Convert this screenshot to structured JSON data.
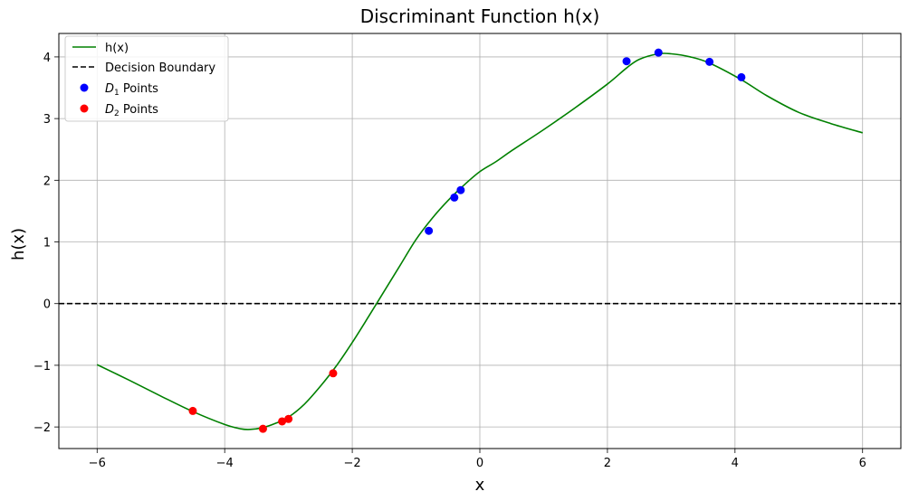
{
  "chart_data": {
    "type": "line",
    "title": "Discriminant Function h(x)",
    "xlabel": "x",
    "ylabel": "h(x)",
    "xlim": [
      -6.6,
      6.6
    ],
    "ylim": [
      -2.35,
      4.38
    ],
    "xticks": [
      -6,
      -4,
      -2,
      0,
      2,
      4,
      6
    ],
    "yticks": [
      -2,
      -1,
      0,
      1,
      2,
      3,
      4
    ],
    "xtick_labels": [
      "−6",
      "−4",
      "−2",
      "0",
      "2",
      "4",
      "6"
    ],
    "ytick_labels": [
      "−2",
      "−1",
      "0",
      "1",
      "2",
      "3",
      "4"
    ],
    "grid": true,
    "legend_position": "top-left",
    "curve": {
      "name": "h(x)",
      "color": "#008000",
      "x": [
        -6.0,
        -5.5,
        -5.0,
        -4.5,
        -4.0,
        -3.75,
        -3.6,
        -3.4,
        -3.2,
        -3.0,
        -2.75,
        -2.5,
        -2.25,
        -2.0,
        -1.75,
        -1.5,
        -1.25,
        -1.0,
        -0.75,
        -0.5,
        -0.25,
        0.0,
        0.25,
        0.5,
        1.0,
        1.5,
        2.0,
        2.3,
        2.5,
        2.8,
        3.0,
        3.3,
        3.6,
        4.1,
        4.5,
        5.0,
        5.5,
        6.0
      ],
      "y": [
        -0.99,
        -1.24,
        -1.5,
        -1.75,
        -1.96,
        -2.03,
        -2.04,
        -2.01,
        -1.94,
        -1.84,
        -1.63,
        -1.34,
        -1.01,
        -0.63,
        -0.22,
        0.2,
        0.62,
        1.04,
        1.38,
        1.67,
        1.92,
        2.14,
        2.3,
        2.48,
        2.82,
        3.18,
        3.56,
        3.82,
        3.96,
        4.05,
        4.05,
        4.0,
        3.9,
        3.63,
        3.37,
        3.1,
        2.92,
        2.77
      ]
    },
    "decision_boundary": {
      "name": "Decision Boundary",
      "y": 0,
      "color": "#000000"
    },
    "series": [
      {
        "name_base": "D",
        "name_sub": "1",
        "name_suffix": " Points",
        "color": "#0000ff",
        "x": [
          -0.8,
          -0.4,
          -0.3,
          2.3,
          2.8,
          3.6,
          4.1
        ],
        "y": [
          1.18,
          1.72,
          1.84,
          3.93,
          4.07,
          3.92,
          3.67
        ]
      },
      {
        "name_base": "D",
        "name_sub": "2",
        "name_suffix": " Points",
        "color": "#ff0000",
        "x": [
          -4.5,
          -3.4,
          -3.1,
          -3.0,
          -2.3
        ],
        "y": [
          -1.74,
          -2.03,
          -1.91,
          -1.87,
          -1.13
        ]
      }
    ]
  }
}
